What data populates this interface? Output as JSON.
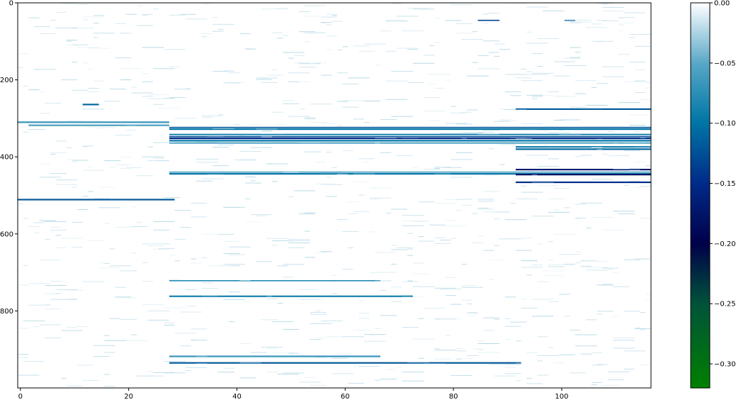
{
  "chart_data": {
    "type": "heatmap",
    "title": "",
    "xlabel": "",
    "ylabel": "",
    "x_range": [
      -0.5,
      116.5
    ],
    "y_range": [
      1000,
      0
    ],
    "x_ticks": [
      0,
      20,
      40,
      60,
      80,
      100
    ],
    "y_ticks": [
      0,
      200,
      400,
      600,
      800
    ],
    "colorbar": {
      "range": [
        -0.32,
        0.0
      ],
      "ticks": [
        0.0,
        -0.05,
        -0.1,
        -0.15,
        -0.2,
        -0.25,
        -0.3
      ],
      "tick_labels": [
        "0.00",
        "−0.05",
        "−0.10",
        "−0.15",
        "−0.20",
        "−0.25",
        "−0.30"
      ],
      "colormap": "ocean_r",
      "colors": [
        "#ffffff",
        "#56a6c6",
        "#0076a6",
        "#002a89",
        "#00004a",
        "#00523a",
        "#008000"
      ]
    },
    "colorbar_position": "right",
    "grid": false,
    "features": [
      {
        "rows": [
          308,
          312
        ],
        "cols": [
          0,
          27
        ],
        "value": -0.07
      },
      {
        "rows": [
          316,
          320
        ],
        "cols": [
          2,
          27
        ],
        "value": -0.06
      },
      {
        "rows": [
          322,
          325
        ],
        "cols": [
          28,
          116
        ],
        "value": -0.12
      },
      {
        "rows": [
          326,
          330
        ],
        "cols": [
          28,
          116
        ],
        "value": -0.1
      },
      {
        "rows": [
          340,
          344
        ],
        "cols": [
          28,
          116
        ],
        "value": -0.08
      },
      {
        "rows": [
          346,
          349
        ],
        "cols": [
          28,
          116
        ],
        "value": -0.13
      },
      {
        "rows": [
          350,
          354
        ],
        "cols": [
          28,
          116
        ],
        "value": -0.15
      },
      {
        "rows": [
          356,
          360
        ],
        "cols": [
          28,
          116
        ],
        "value": -0.1
      },
      {
        "rows": [
          362,
          366
        ],
        "cols": [
          28,
          116
        ],
        "value": -0.05
      },
      {
        "rows": [
          372,
          376
        ],
        "cols": [
          92,
          116
        ],
        "value": -0.09
      },
      {
        "rows": [
          378,
          382
        ],
        "cols": [
          92,
          116
        ],
        "value": -0.11
      },
      {
        "rows": [
          438,
          441
        ],
        "cols": [
          28,
          116
        ],
        "value": -0.06
      },
      {
        "rows": [
          442,
          446
        ],
        "cols": [
          28,
          116
        ],
        "value": -0.1
      },
      {
        "rows": [
          431,
          435
        ],
        "cols": [
          92,
          116
        ],
        "value": -0.17
      },
      {
        "rows": [
          444,
          448
        ],
        "cols": [
          92,
          116
        ],
        "value": -0.18
      },
      {
        "rows": [
          464,
          468
        ],
        "cols": [
          92,
          116
        ],
        "value": -0.15
      },
      {
        "rows": [
          509,
          513
        ],
        "cols": [
          0,
          28
        ],
        "value": -0.12
      },
      {
        "rows": [
          720,
          723
        ],
        "cols": [
          28,
          66
        ],
        "value": -0.08
      },
      {
        "rows": [
          760,
          764
        ],
        "cols": [
          28,
          72
        ],
        "value": -0.09
      },
      {
        "rows": [
          933,
          937
        ],
        "cols": [
          28,
          92
        ],
        "value": -0.12
      },
      {
        "rows": [
          916,
          920
        ],
        "cols": [
          28,
          66
        ],
        "value": -0.07
      },
      {
        "rows": [
          274,
          278
        ],
        "cols": [
          92,
          116
        ],
        "value": -0.12
      },
      {
        "rows": [
          262,
          266
        ],
        "cols": [
          12,
          14
        ],
        "value": -0.11
      },
      {
        "rows": [
          44,
          47
        ],
        "cols": [
          85,
          88
        ],
        "value": -0.13
      },
      {
        "rows": [
          44,
          47
        ],
        "cols": [
          101,
          102
        ],
        "value": -0.12
      }
    ]
  }
}
